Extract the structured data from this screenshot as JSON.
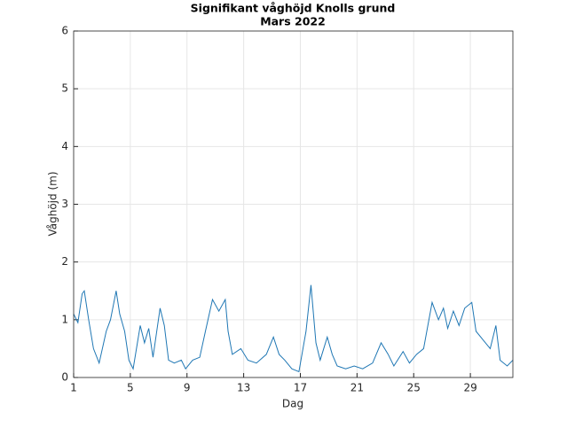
{
  "chart_data": {
    "type": "line",
    "title": "Signifikant våghöjd Knolls grund",
    "subtitle": "Mars 2022",
    "x_label": "Dag",
    "y_label": "Våghöjd (m)",
    "xlim": [
      1,
      32
    ],
    "xticks": [
      1,
      5,
      9,
      13,
      17,
      21,
      25,
      29
    ],
    "ylim": [
      0,
      6
    ],
    "yticks": [
      0,
      1,
      2,
      3,
      4,
      5,
      6
    ],
    "grid": true,
    "series": [
      {
        "color": "#1f77b4",
        "x": [
          1,
          1.3,
          1.6,
          1.75,
          2.06,
          2.4,
          2.8,
          3.3,
          3.6,
          4.0,
          4.25,
          4.6,
          4.9,
          5.2,
          5.7,
          6.0,
          6.3,
          6.6,
          7.1,
          7.4,
          7.7,
          8.1,
          8.6,
          8.9,
          9.4,
          9.9,
          10.3,
          10.8,
          11.25,
          11.7,
          11.9,
          12.2,
          12.8,
          13.3,
          13.9,
          14.6,
          15.1,
          15.5,
          15.9,
          16.4,
          16.9,
          17.4,
          17.75,
          18.1,
          18.4,
          18.9,
          19.25,
          19.6,
          20.2,
          20.8,
          21.4,
          22.1,
          22.7,
          23.2,
          23.6,
          24.25,
          24.7,
          25.2,
          25.7,
          26.3,
          26.75,
          27.1,
          27.4,
          27.8,
          28.2,
          28.6,
          29.1,
          29.4,
          29.9,
          30.4,
          30.8,
          31.1,
          31.6,
          32
        ],
        "values": [
          1.1,
          0.95,
          1.45,
          1.5,
          1.0,
          0.5,
          0.25,
          0.8,
          1.0,
          1.5,
          1.1,
          0.8,
          0.3,
          0.15,
          0.9,
          0.6,
          0.85,
          0.35,
          1.2,
          0.9,
          0.3,
          0.25,
          0.3,
          0.15,
          0.3,
          0.35,
          0.8,
          1.35,
          1.15,
          1.35,
          0.8,
          0.4,
          0.5,
          0.3,
          0.25,
          0.4,
          0.7,
          0.4,
          0.3,
          0.15,
          0.1,
          0.8,
          1.6,
          0.6,
          0.3,
          0.7,
          0.4,
          0.2,
          0.15,
          0.2,
          0.15,
          0.25,
          0.6,
          0.4,
          0.2,
          0.45,
          0.25,
          0.4,
          0.5,
          1.3,
          1.0,
          1.2,
          0.85,
          1.15,
          0.9,
          1.2,
          1.3,
          0.8,
          0.65,
          0.5,
          0.9,
          0.3,
          0.2,
          0.3
        ]
      }
    ]
  }
}
